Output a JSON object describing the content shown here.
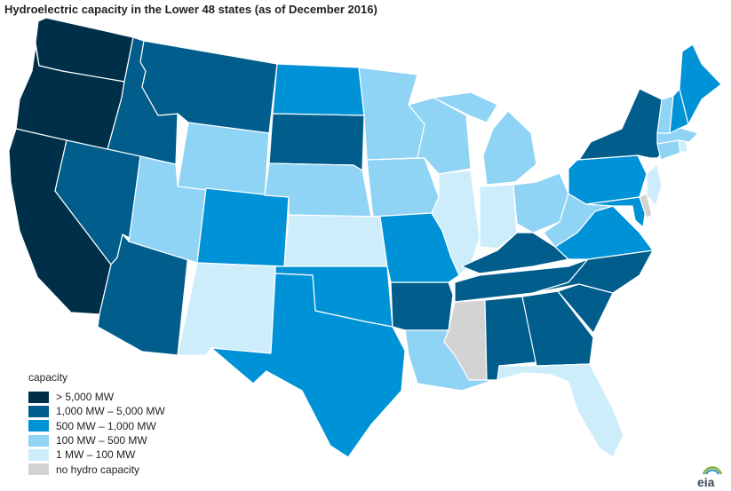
{
  "title": "Hydroelectric capacity in the Lower 48 states (as of December 2016)",
  "legend": {
    "title": "capacity",
    "items": [
      {
        "label": "> 5,000 MW",
        "color": "#003049"
      },
      {
        "label": "1,000 MW – 5,000 MW",
        "color": "#005d8c"
      },
      {
        "label": "500 MW – 1,000 MW",
        "color": "#0092d6"
      },
      {
        "label": "100 MW – 500 MW",
        "color": "#8fd3f5"
      },
      {
        "label": "1 MW – 100 MW",
        "color": "#cdedfb"
      },
      {
        "label": "no hydro capacity",
        "color": "#d3d3d3"
      }
    ]
  },
  "states": [
    {
      "name": "WA",
      "category": 0
    },
    {
      "name": "OR",
      "category": 0
    },
    {
      "name": "CA",
      "category": 0
    },
    {
      "name": "ID",
      "category": 1
    },
    {
      "name": "MT",
      "category": 1
    },
    {
      "name": "NV",
      "category": 1
    },
    {
      "name": "AZ",
      "category": 1
    },
    {
      "name": "SD",
      "category": 1
    },
    {
      "name": "AR",
      "category": 1
    },
    {
      "name": "AL",
      "category": 1
    },
    {
      "name": "GA",
      "category": 1
    },
    {
      "name": "SC",
      "category": 1
    },
    {
      "name": "NC",
      "category": 1
    },
    {
      "name": "TN",
      "category": 1
    },
    {
      "name": "KY",
      "category": 1
    },
    {
      "name": "NY",
      "category": 1
    },
    {
      "name": "ND",
      "category": 2
    },
    {
      "name": "CO",
      "category": 2
    },
    {
      "name": "OK",
      "category": 2
    },
    {
      "name": "TX",
      "category": 2
    },
    {
      "name": "MO",
      "category": 2
    },
    {
      "name": "VA",
      "category": 2
    },
    {
      "name": "PA",
      "category": 2
    },
    {
      "name": "ME",
      "category": 2
    },
    {
      "name": "NH",
      "category": 2
    },
    {
      "name": "MD",
      "category": 2
    },
    {
      "name": "WY",
      "category": 3
    },
    {
      "name": "UT",
      "category": 3
    },
    {
      "name": "NE",
      "category": 3
    },
    {
      "name": "MN",
      "category": 3
    },
    {
      "name": "IA",
      "category": 3
    },
    {
      "name": "WI",
      "category": 3
    },
    {
      "name": "MI",
      "category": 3
    },
    {
      "name": "OH",
      "category": 3
    },
    {
      "name": "WV",
      "category": 3
    },
    {
      "name": "LA",
      "category": 3
    },
    {
      "name": "VT",
      "category": 3
    },
    {
      "name": "MA",
      "category": 3
    },
    {
      "name": "CT",
      "category": 3
    },
    {
      "name": "NM",
      "category": 4
    },
    {
      "name": "KS",
      "category": 4
    },
    {
      "name": "IL",
      "category": 4
    },
    {
      "name": "IN",
      "category": 4
    },
    {
      "name": "FL",
      "category": 4
    },
    {
      "name": "NJ",
      "category": 4
    },
    {
      "name": "RI",
      "category": 4
    },
    {
      "name": "MS",
      "category": 5
    },
    {
      "name": "DE",
      "category": 5
    }
  ],
  "source_logo": "eia"
}
